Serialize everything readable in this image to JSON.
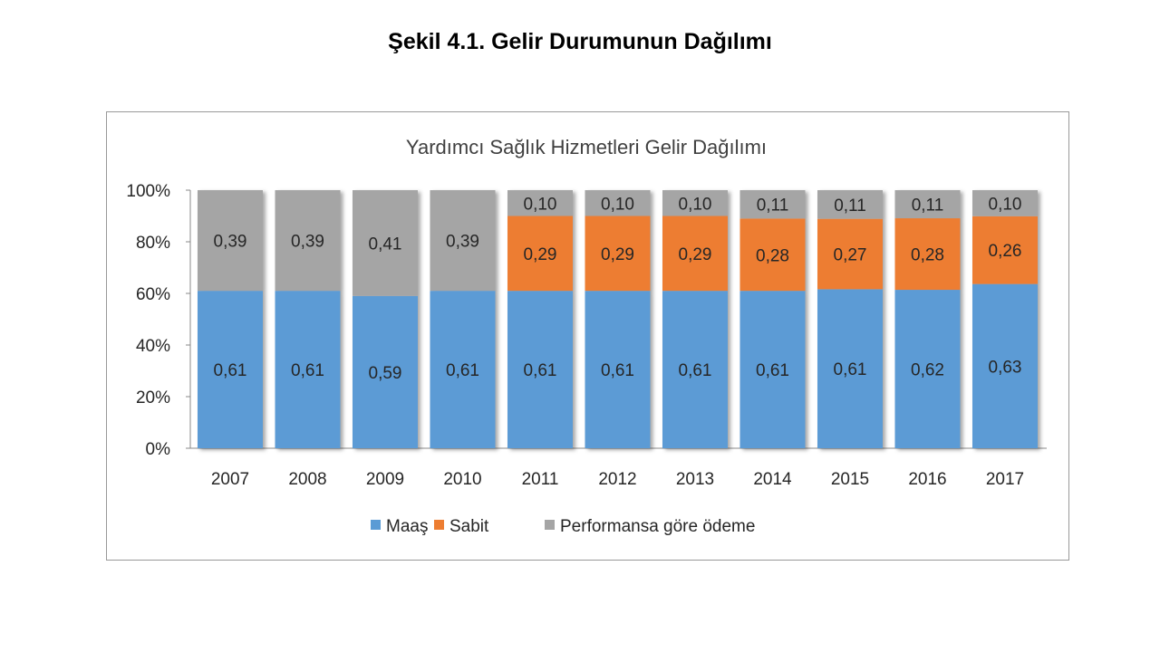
{
  "page_title": "Şekil 4.1. Gelir Durumunun Dağılımı",
  "chart_data": {
    "type": "bar",
    "stacked": true,
    "title": "Yardımcı Sağlık Hizmetleri Gelir Dağılımı",
    "xlabel": "",
    "ylabel": "",
    "ylim": [
      0,
      1
    ],
    "yticks": [
      "0%",
      "20%",
      "40%",
      "60%",
      "80%",
      "100%"
    ],
    "legend_position": "bottom",
    "categories": [
      "2007",
      "2008",
      "2009",
      "2010",
      "2011",
      "2012",
      "2013",
      "2014",
      "2015",
      "2016",
      "2017"
    ],
    "series": [
      {
        "name": "Maaş",
        "color": "#5b9bd5",
        "values": [
          0.61,
          0.61,
          0.59,
          0.61,
          0.61,
          0.61,
          0.61,
          0.61,
          0.61,
          0.62,
          0.63
        ],
        "labels": [
          "0,61",
          "0,61",
          "0,59",
          "0,61",
          "0,61",
          "0,61",
          "0,61",
          "0,61",
          "0,61",
          "0,62",
          "0,63"
        ]
      },
      {
        "name": "Sabit",
        "color": "#ed7d31",
        "values": [
          0,
          0,
          0,
          0,
          0.29,
          0.29,
          0.29,
          0.28,
          0.27,
          0.28,
          0.26
        ],
        "labels": [
          "",
          "",
          "",
          "",
          "0,29",
          "0,29",
          "0,29",
          "0,28",
          "0,27",
          "0,28",
          "0,26"
        ]
      },
      {
        "name": "Performansa göre ödeme",
        "color": "#a5a5a5",
        "values": [
          0.39,
          0.39,
          0.41,
          0.39,
          0.1,
          0.1,
          0.1,
          0.11,
          0.11,
          0.11,
          0.1
        ],
        "labels": [
          "0,39",
          "0,39",
          "0,41",
          "0,39",
          "0,10",
          "0,10",
          "0,10",
          "0,11",
          "0,11",
          "0,11",
          "0,10"
        ]
      }
    ]
  }
}
